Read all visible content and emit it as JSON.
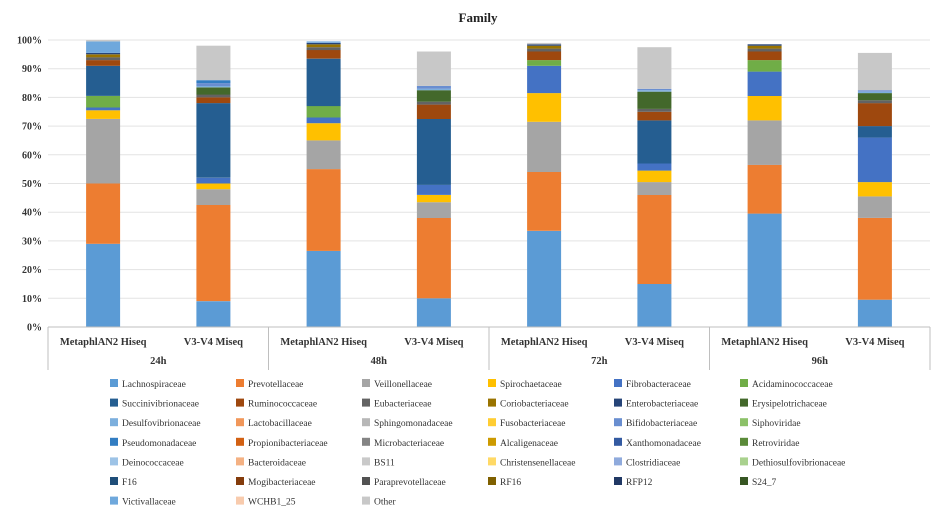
{
  "chart_data": {
    "type": "bar",
    "stacked": true,
    "title": "Family",
    "ylabel": "",
    "xlabel": "",
    "ylim": [
      0,
      100
    ],
    "y_ticks": [
      "0%",
      "10%",
      "20%",
      "30%",
      "40%",
      "50%",
      "60%",
      "70%",
      "80%",
      "90%",
      "100%"
    ],
    "groups": [
      {
        "label": "24h",
        "categories": [
          "MetaphlAN2 Hiseq",
          "V3-V4 Miseq"
        ]
      },
      {
        "label": "48h",
        "categories": [
          "MetaphlAN2 Hiseq",
          "V3-V4 Miseq"
        ]
      },
      {
        "label": "72h",
        "categories": [
          "MetaphlAN2 Hiseq",
          "V3-V4 Miseq"
        ]
      },
      {
        "label": "96h",
        "categories": [
          "MetaphlAN2 Hiseq",
          "V3-V4 Miseq"
        ]
      }
    ],
    "legend_position": "bottom",
    "series": [
      {
        "name": "Lachnospiraceae",
        "color": "#5b9bd5",
        "values": [
          29,
          9,
          26.5,
          10,
          33.5,
          15,
          39.5,
          9.5
        ]
      },
      {
        "name": "Prevotellaceae",
        "color": "#ed7d31",
        "values": [
          21,
          33.5,
          28.5,
          28,
          20.5,
          31,
          17,
          28.5
        ]
      },
      {
        "name": "Veillonellaceae",
        "color": "#a5a5a5",
        "values": [
          22.5,
          5.5,
          10,
          5.5,
          17.5,
          4.5,
          15.5,
          7.5
        ]
      },
      {
        "name": "Spirochaetaceae",
        "color": "#ffc000",
        "values": [
          3,
          2,
          6,
          2.5,
          10,
          4,
          8.5,
          5
        ]
      },
      {
        "name": "Fibrobacteraceae",
        "color": "#4472c4",
        "values": [
          1,
          2,
          2,
          3.5,
          9.5,
          2.5,
          8.5,
          15.5
        ]
      },
      {
        "name": "Acidaminococcaceae",
        "color": "#70ad47",
        "values": [
          4,
          0,
          4,
          0,
          2,
          0,
          4,
          0
        ]
      },
      {
        "name": "Succinivibrionaceae",
        "color": "#255e91",
        "values": [
          10.5,
          26,
          16.5,
          23,
          0,
          15,
          0,
          4
        ]
      },
      {
        "name": "Ruminococcaceae",
        "color": "#9e480e",
        "values": [
          2,
          2,
          3,
          5,
          3,
          3,
          3,
          8
        ]
      },
      {
        "name": "Eubacteriaceae",
        "color": "#636363",
        "values": [
          1,
          1,
          1,
          1,
          1,
          1,
          1,
          1
        ]
      },
      {
        "name": "Coriobacteriaceae",
        "color": "#997300",
        "values": [
          1,
          0,
          1,
          0,
          1,
          0,
          1,
          0
        ]
      },
      {
        "name": "Enterobacteriaceae",
        "color": "#264478",
        "values": [
          0.5,
          0,
          0.5,
          0,
          0.5,
          0,
          0.5,
          0
        ]
      },
      {
        "name": "Erysipelotrichaceae",
        "color": "#43682b",
        "values": [
          0,
          2.5,
          0,
          4,
          0,
          6,
          0,
          2.5
        ]
      },
      {
        "name": "Desulfovibrionaceae",
        "color": "#7cafdd",
        "values": [
          0,
          0.5,
          0,
          0.5,
          0,
          0.5,
          0,
          0.5
        ]
      },
      {
        "name": "Lactobacillaceae",
        "color": "#f1975a",
        "values": [
          0,
          0,
          0,
          0,
          0,
          0,
          0,
          0
        ]
      },
      {
        "name": "Sphingomonadaceae",
        "color": "#b7b7b7",
        "values": [
          0,
          0,
          0,
          0,
          0,
          0,
          0,
          0
        ]
      },
      {
        "name": "Fusobacteriaceae",
        "color": "#ffcd33",
        "values": [
          0,
          0,
          0,
          0,
          0,
          0,
          0,
          0
        ]
      },
      {
        "name": "Bifidobacteriaceae",
        "color": "#698ed0",
        "values": [
          0,
          1,
          0,
          1,
          0,
          0.5,
          0,
          0.5
        ]
      },
      {
        "name": "Siphoviridae",
        "color": "#8cc168",
        "values": [
          0,
          0,
          0,
          0,
          0,
          0,
          0,
          0
        ]
      },
      {
        "name": "Pseudomonadaceae",
        "color": "#327dc2",
        "values": [
          0,
          1,
          0,
          0,
          0,
          0,
          0,
          0
        ]
      },
      {
        "name": "Propionibacteriaceae",
        "color": "#d26012",
        "values": [
          0,
          0,
          0,
          0,
          0,
          0,
          0,
          0
        ]
      },
      {
        "name": "Microbacteriaceae",
        "color": "#848484",
        "values": [
          0,
          0,
          0,
          0,
          0,
          0,
          0,
          0
        ]
      },
      {
        "name": "Alcaligenaceae",
        "color": "#cc9a00",
        "values": [
          0,
          0,
          0,
          0,
          0,
          0,
          0,
          0
        ]
      },
      {
        "name": "Xanthomonadaceae",
        "color": "#335aa1",
        "values": [
          0,
          0,
          0,
          0,
          0,
          0,
          0,
          0
        ]
      },
      {
        "name": "Retroviridae",
        "color": "#5a8a39",
        "values": [
          0,
          0,
          0,
          0,
          0,
          0,
          0,
          0
        ]
      },
      {
        "name": "Deinococcaceae",
        "color": "#9dc3e6",
        "values": [
          0,
          0,
          0,
          0,
          0,
          0,
          0,
          0
        ]
      },
      {
        "name": "Bacteroidaceae",
        "color": "#f4b183",
        "values": [
          0,
          0,
          0,
          0,
          0,
          0,
          0,
          0
        ]
      },
      {
        "name": "BS11",
        "color": "#c9c9c9",
        "values": [
          0,
          0,
          0,
          0,
          0,
          0,
          0,
          0
        ]
      },
      {
        "name": "Christensenellaceae",
        "color": "#ffd966",
        "values": [
          0,
          0,
          0,
          0,
          0,
          0,
          0,
          0
        ]
      },
      {
        "name": "Clostridiaceae",
        "color": "#8faadc",
        "values": [
          0,
          0,
          0,
          0,
          0,
          0,
          0,
          0
        ]
      },
      {
        "name": "Dethiosulfovibrionaceae",
        "color": "#a9d18e",
        "values": [
          0,
          0,
          0,
          0,
          0,
          0,
          0,
          0
        ]
      },
      {
        "name": "F16",
        "color": "#1f4e79",
        "values": [
          0,
          0,
          0,
          0,
          0,
          0,
          0,
          0
        ]
      },
      {
        "name": "Mogibacteriaceae",
        "color": "#843c0c",
        "values": [
          0,
          0,
          0,
          0,
          0,
          0,
          0,
          0
        ]
      },
      {
        "name": "Paraprevotellaceae",
        "color": "#525252",
        "values": [
          0,
          0,
          0,
          0,
          0,
          0,
          0,
          0
        ]
      },
      {
        "name": "RF16",
        "color": "#7f6000",
        "values": [
          0,
          0,
          0,
          0,
          0,
          0,
          0,
          0
        ]
      },
      {
        "name": "RFP12",
        "color": "#203864",
        "values": [
          0,
          0,
          0,
          0,
          0,
          0,
          0,
          0
        ]
      },
      {
        "name": "S24_7",
        "color": "#375623",
        "values": [
          0,
          0,
          0,
          0,
          0,
          0,
          0,
          0
        ]
      },
      {
        "name": "Victivallaceae",
        "color": "#6fa8dc",
        "values": [
          4,
          0,
          0.5,
          0,
          0,
          0,
          0,
          0
        ]
      },
      {
        "name": "WCHB1_25",
        "color": "#f8cbad",
        "values": [
          0,
          0,
          0,
          0,
          0,
          0,
          0,
          0
        ]
      },
      {
        "name": "Other",
        "color": "#c8c8c8",
        "values": [
          0.5,
          12,
          0,
          12,
          0.5,
          14.5,
          0,
          13
        ]
      }
    ]
  }
}
